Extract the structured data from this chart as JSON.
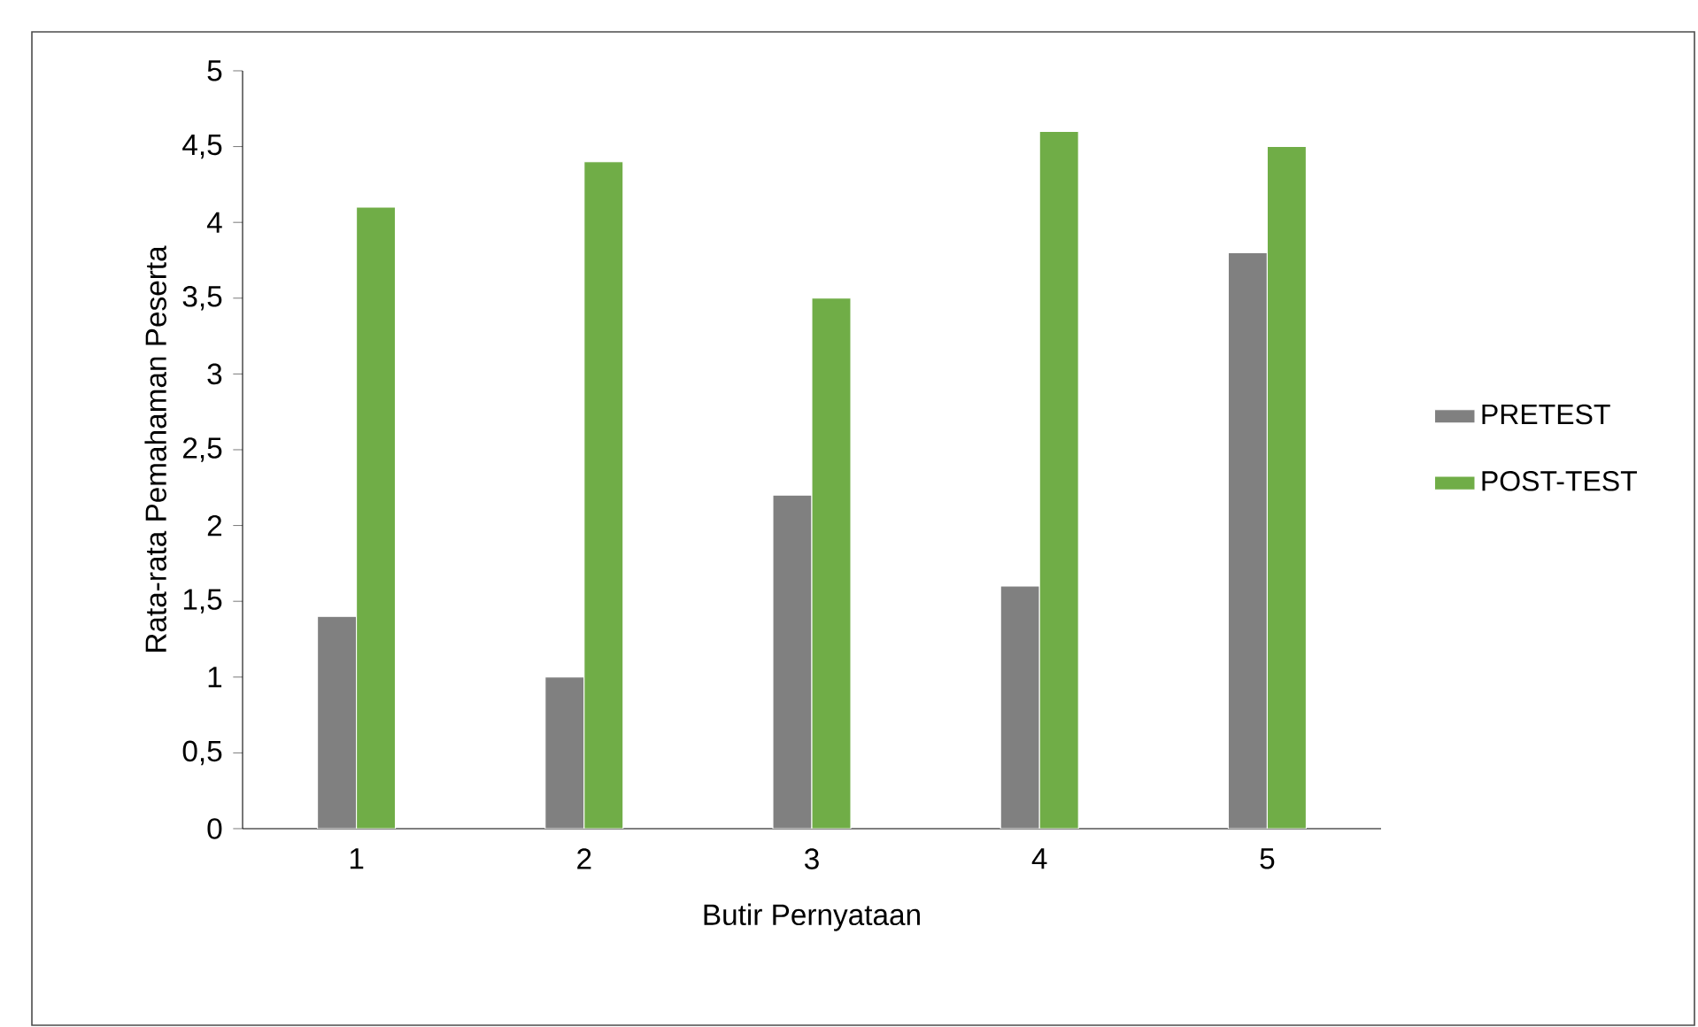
{
  "chart_data": {
    "type": "bar",
    "xlabel": "Butir Pernyataan",
    "ylabel": "Rata-rata Pemahaman Peserta",
    "categories": [
      "1",
      "2",
      "3",
      "4",
      "5"
    ],
    "series": [
      {
        "name": "PRETEST",
        "color": "#808080",
        "values": [
          1.4,
          1.0,
          2.2,
          1.6,
          3.8
        ]
      },
      {
        "name": "POST-TEST",
        "color": "#70ad47",
        "values": [
          4.1,
          4.4,
          3.5,
          4.6,
          4.5
        ]
      }
    ],
    "ylim": [
      0,
      5
    ],
    "yticks": [
      0,
      {
        "value": 0.5,
        "label": "0,5"
      },
      1,
      {
        "value": 1.5,
        "label": "1,5"
      },
      2,
      {
        "value": 2.5,
        "label": "2,5"
      },
      3,
      {
        "value": 3.5,
        "label": "3,5"
      },
      4,
      {
        "value": 4.5,
        "label": "4,5"
      },
      5
    ],
    "grid": false,
    "legend": "right"
  }
}
